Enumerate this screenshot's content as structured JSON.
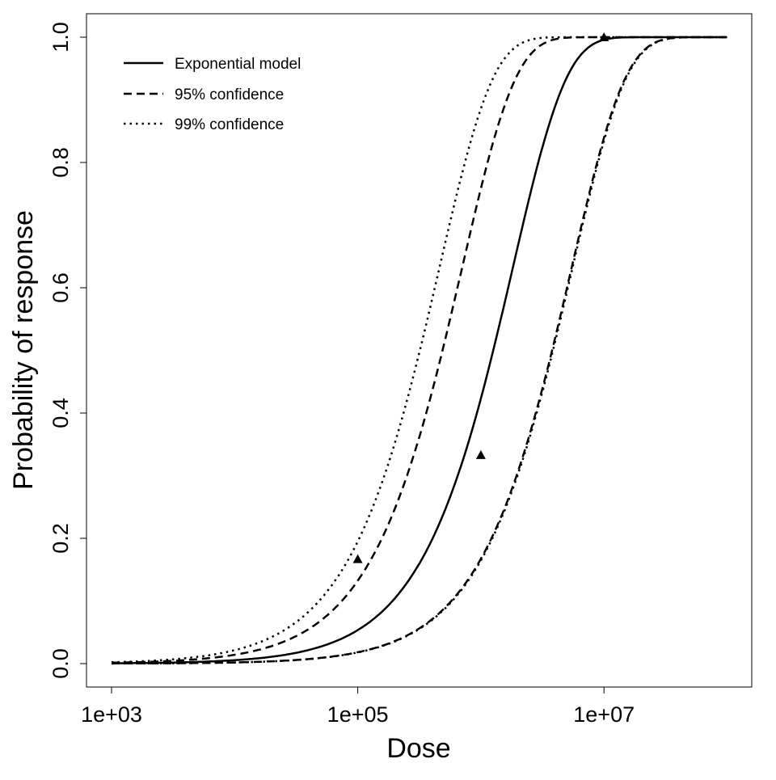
{
  "chart_data": {
    "type": "line",
    "title": "",
    "xlabel": "Dose",
    "ylabel": "Probability of response",
    "x_scale": "log10",
    "xlim": [
      1000,
      100000000
    ],
    "ylim": [
      0,
      1
    ],
    "x_ticks": [
      {
        "value": 1000,
        "label": "1e+03"
      },
      {
        "value": 100000,
        "label": "1e+05"
      },
      {
        "value": 10000000,
        "label": "1e+07"
      }
    ],
    "y_ticks": [
      {
        "value": 0,
        "label": "0.0"
      },
      {
        "value": 0.2,
        "label": "0.2"
      },
      {
        "value": 0.4,
        "label": "0.4"
      },
      {
        "value": 0.6,
        "label": "0.6"
      },
      {
        "value": 0.8,
        "label": "0.8"
      },
      {
        "value": 1.0,
        "label": "1.0"
      }
    ],
    "grid": false,
    "legend_position": "top-left",
    "legend": [
      {
        "label": "Exponential model",
        "style": "solid"
      },
      {
        "label": "95% confidence",
        "style": "dashed"
      },
      {
        "label": "99% confidence",
        "style": "dotted"
      }
    ],
    "series": [
      {
        "name": "Exponential model",
        "style": "solid",
        "model": "1-exp(-k*dose)",
        "k": 5.5e-07
      },
      {
        "name": "95% confidence",
        "style": "dashed",
        "model": "1-exp(-k*dose)",
        "k": 1.42e-06
      },
      {
        "name": "95% confidence",
        "style": "dashed",
        "model": "1-exp(-k*dose)",
        "k": 1.83e-07
      },
      {
        "name": "99% confidence",
        "style": "dotted",
        "model": "1-exp(-k*dose)",
        "k": 2.17e-06
      },
      {
        "name": "99% confidence",
        "style": "dotted",
        "model": "1-exp(-k*dose)",
        "k": 1.8e-07
      }
    ],
    "observed_points": [
      {
        "x": 100000,
        "y": 0.167
      },
      {
        "x": 1000000,
        "y": 0.333
      },
      {
        "x": 10000000,
        "y": 1.0
      }
    ],
    "color": "#000000"
  }
}
